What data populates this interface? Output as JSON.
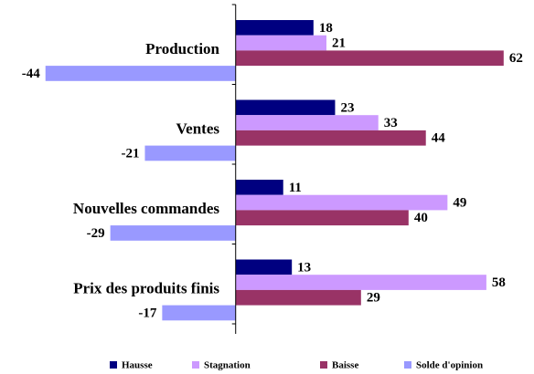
{
  "chart_data": {
    "type": "hbar",
    "categories": [
      "Production",
      "Ventes",
      "Nouvelles commandes",
      "Prix des produits finis"
    ],
    "series": [
      {
        "name": "Hausse",
        "color": "#000080",
        "values": [
          18,
          23,
          11,
          13
        ]
      },
      {
        "name": "Stagnation",
        "color": "#cc99ff",
        "values": [
          21,
          33,
          49,
          58
        ]
      },
      {
        "name": "Baisse",
        "color": "#993366",
        "values": [
          62,
          44,
          40,
          29
        ]
      },
      {
        "name": "Solde d'opinion",
        "color": "#9999ff",
        "values": [
          -44,
          -21,
          -29,
          -17
        ]
      }
    ],
    "xlim": [
      -45,
      65
    ],
    "legend": "bottom"
  }
}
